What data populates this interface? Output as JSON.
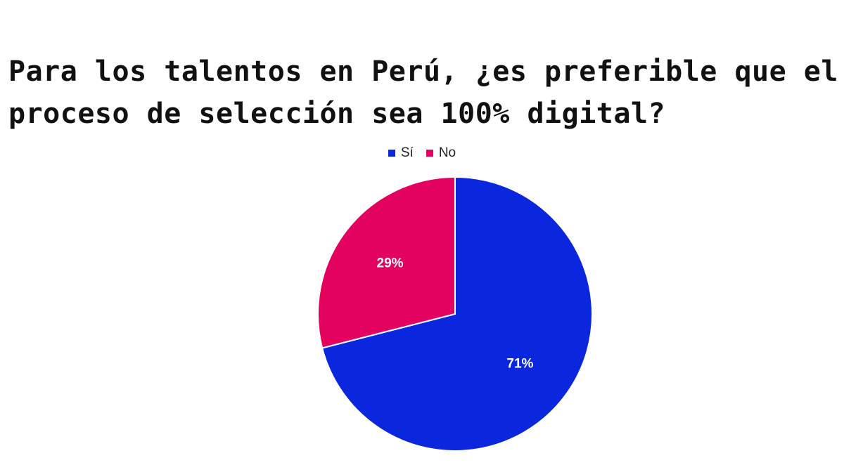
{
  "chart_data": {
    "type": "pie",
    "title": "Para los talentos en Perú, ¿es preferible que el proceso de selección sea 100% digital?",
    "categories": [
      "Sí",
      "No"
    ],
    "values": [
      71,
      29
    ],
    "value_labels": [
      "71%",
      "29%"
    ],
    "colors": [
      "#0a27de",
      "#e3025f"
    ],
    "legend_position": "top"
  }
}
